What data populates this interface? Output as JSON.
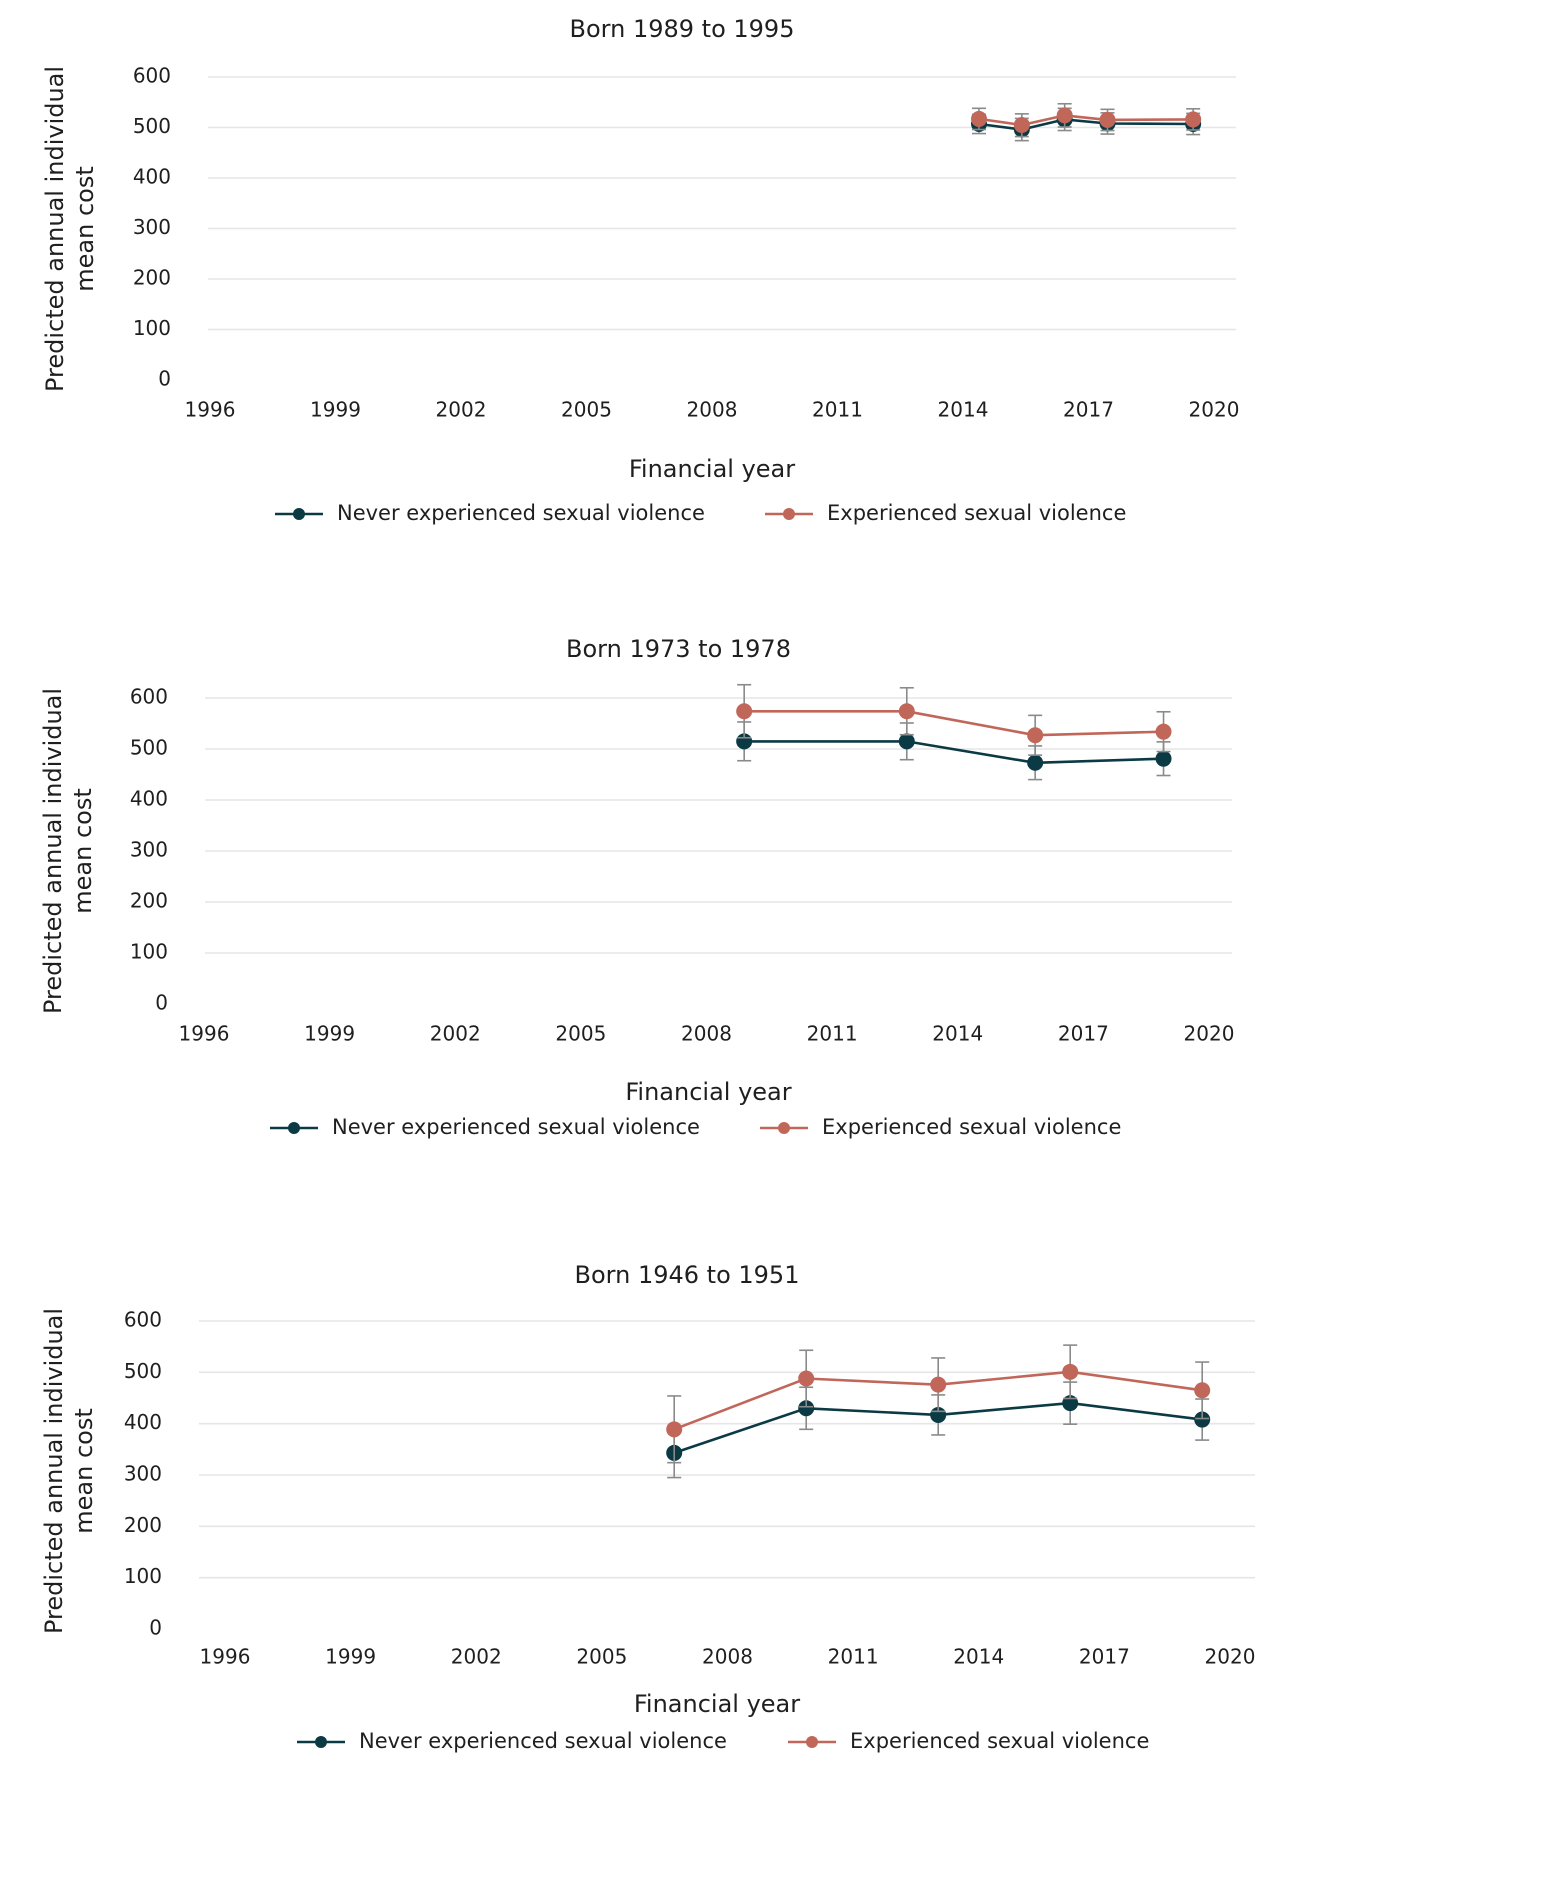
{
  "chart_data": [
    {
      "type": "line",
      "title": "Born 1989 to 1995",
      "ylabel_lines": [
        "Predicted annual individual",
        "mean cost"
      ],
      "xlabel": "Financial year",
      "x_ticks": [
        "1996",
        "1999",
        "2002",
        "2005",
        "2008",
        "2011",
        "2014",
        "2017",
        "2020"
      ],
      "y_ticks": [
        "0",
        "100",
        "200",
        "300",
        "400",
        "500",
        "600"
      ],
      "xlim": [
        1996,
        2020
      ],
      "ylim": [
        0,
        600
      ],
      "grid": true,
      "legend_position": "bottom",
      "series": [
        {
          "name": "Never experienced sexual violence",
          "color": "#0b3a45",
          "points": [
            {
              "x": 2014,
              "y": 507,
              "lo": 488,
              "hi": 526
            },
            {
              "x": 2015,
              "y": 496,
              "lo": 474,
              "hi": 518
            },
            {
              "x": 2016,
              "y": 516,
              "lo": 494,
              "hi": 538
            },
            {
              "x": 2017,
              "y": 508,
              "lo": 487,
              "hi": 529
            },
            {
              "x": 2019,
              "y": 507,
              "lo": 486,
              "hi": 528
            }
          ]
        },
        {
          "name": "Experienced sexual violence",
          "color": "#c0675a",
          "points": [
            {
              "x": 2014,
              "y": 517,
              "lo": 496,
              "hi": 538
            },
            {
              "x": 2015,
              "y": 505,
              "lo": 482,
              "hi": 527
            },
            {
              "x": 2016,
              "y": 524,
              "lo": 501,
              "hi": 547
            },
            {
              "x": 2017,
              "y": 515,
              "lo": 494,
              "hi": 536
            },
            {
              "x": 2019,
              "y": 516,
              "lo": 495,
              "hi": 537
            }
          ]
        }
      ]
    },
    {
      "type": "line",
      "title": "Born 1973 to 1978",
      "ylabel_lines": [
        "Predicted annual individual",
        "mean cost"
      ],
      "xlabel": "Financial year",
      "x_ticks": [
        "1996",
        "1999",
        "2002",
        "2005",
        "2008",
        "2011",
        "2014",
        "2017",
        "2020"
      ],
      "y_ticks": [
        "0",
        "100",
        "200",
        "300",
        "400",
        "500",
        "600"
      ],
      "xlim": [
        1996,
        2020
      ],
      "ylim": [
        0,
        600
      ],
      "grid": true,
      "legend_position": "bottom",
      "series": [
        {
          "name": "Never experienced sexual violence",
          "color": "#0b3a45",
          "points": [
            {
              "x": 2008.6,
              "y": 515,
              "lo": 477,
              "hi": 553
            },
            {
              "x": 2012.4,
              "y": 515,
              "lo": 479,
              "hi": 551
            },
            {
              "x": 2015.4,
              "y": 473,
              "lo": 440,
              "hi": 506
            },
            {
              "x": 2018.4,
              "y": 481,
              "lo": 448,
              "hi": 514
            }
          ]
        },
        {
          "name": "Experienced sexual violence",
          "color": "#c0675a",
          "points": [
            {
              "x": 2008.6,
              "y": 574,
              "lo": 522,
              "hi": 626
            },
            {
              "x": 2012.4,
              "y": 574,
              "lo": 528,
              "hi": 620
            },
            {
              "x": 2015.4,
              "y": 527,
              "lo": 488,
              "hi": 566
            },
            {
              "x": 2018.4,
              "y": 534,
              "lo": 495,
              "hi": 573
            }
          ]
        }
      ]
    },
    {
      "type": "line",
      "title": "Born 1946 to 1951",
      "ylabel_lines": [
        "Predicted annual individual",
        "mean cost"
      ],
      "xlabel": "Financial year",
      "x_ticks": [
        "1996",
        "1999",
        "2002",
        "2005",
        "2008",
        "2011",
        "2014",
        "2017",
        "2020"
      ],
      "y_ticks": [
        "0",
        "100",
        "200",
        "300",
        "400",
        "500",
        "600"
      ],
      "xlim": [
        1996,
        2020
      ],
      "ylim": [
        0,
        600
      ],
      "grid": true,
      "legend_position": "bottom",
      "series": [
        {
          "name": "Never experienced sexual violence",
          "color": "#0b3a45",
          "points": [
            {
              "x": 2006.8,
              "y": 343,
              "lo": 295,
              "hi": 391
            },
            {
              "x": 2009.8,
              "y": 430,
              "lo": 389,
              "hi": 471
            },
            {
              "x": 2012.8,
              "y": 417,
              "lo": 378,
              "hi": 456
            },
            {
              "x": 2015.8,
              "y": 440,
              "lo": 399,
              "hi": 481
            },
            {
              "x": 2018.8,
              "y": 408,
              "lo": 368,
              "hi": 448
            }
          ]
        },
        {
          "name": "Experienced sexual violence",
          "color": "#c0675a",
          "points": [
            {
              "x": 2006.8,
              "y": 389,
              "lo": 324,
              "hi": 454
            },
            {
              "x": 2009.8,
              "y": 488,
              "lo": 433,
              "hi": 543
            },
            {
              "x": 2012.8,
              "y": 476,
              "lo": 424,
              "hi": 528
            },
            {
              "x": 2015.8,
              "y": 501,
              "lo": 449,
              "hi": 553
            },
            {
              "x": 2018.8,
              "y": 465,
              "lo": 410,
              "hi": 520
            }
          ]
        }
      ]
    }
  ]
}
